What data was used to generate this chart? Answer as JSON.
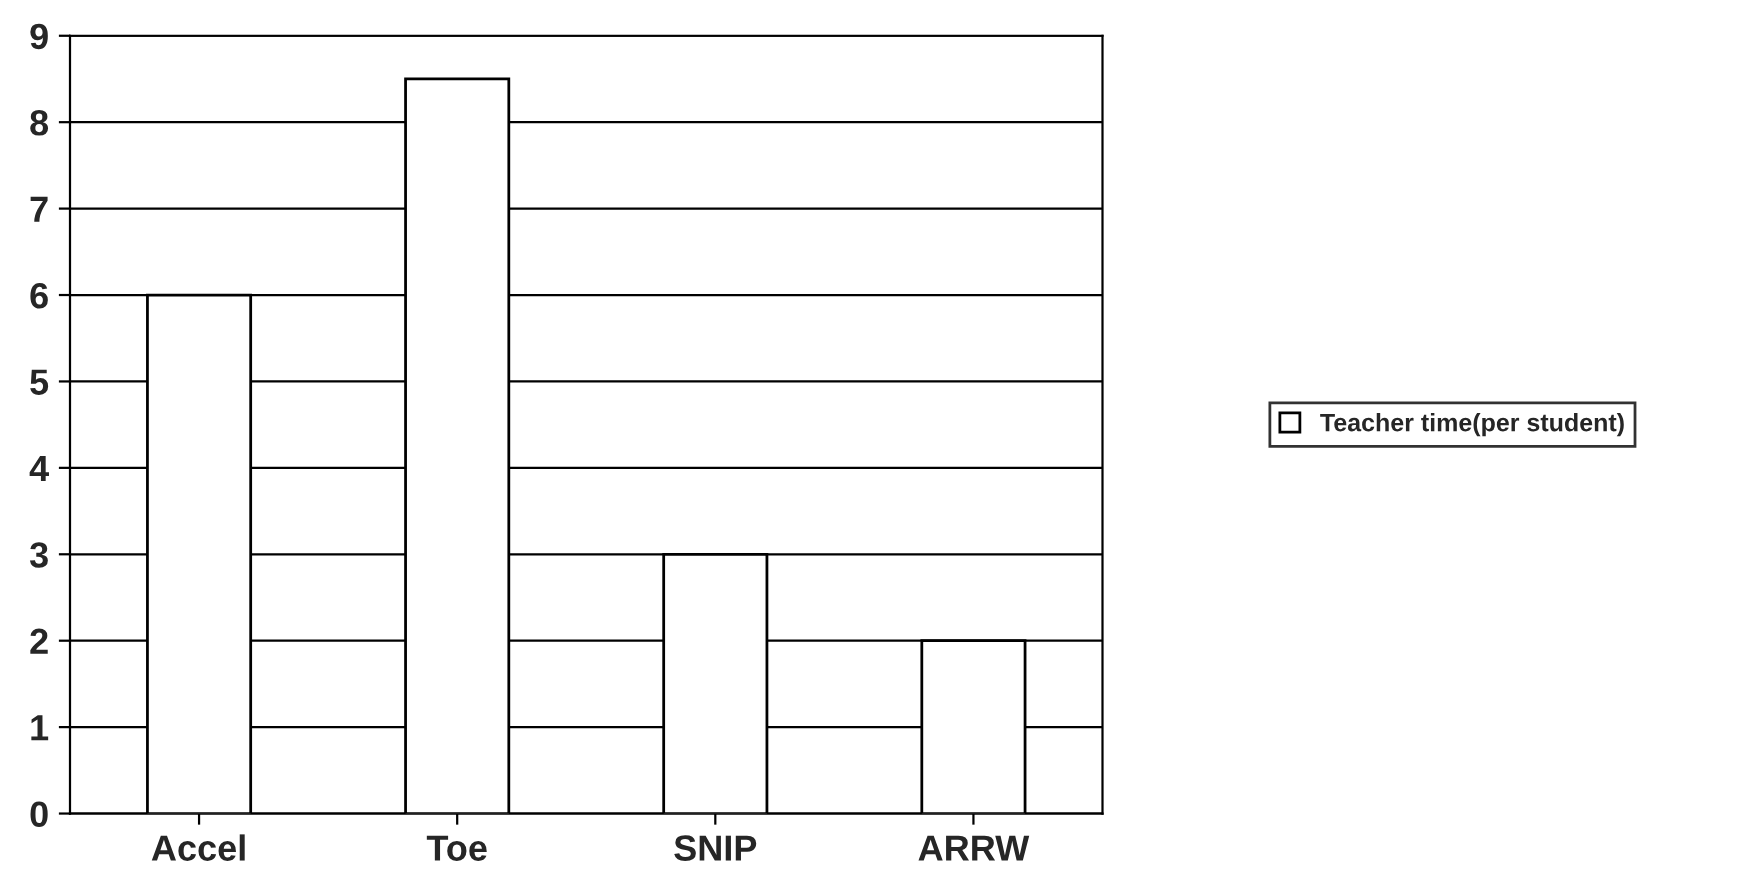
{
  "chart_data": {
    "type": "bar",
    "categories": [
      "Accel",
      "Toe",
      "SNIP",
      "ARRW"
    ],
    "series": [
      {
        "name": "Teacher time(per student)",
        "color": "#ffffff",
        "values": [
          6,
          8.5,
          3,
          2
        ]
      }
    ],
    "ylim": [
      0,
      9
    ],
    "yticks": [
      0,
      1,
      2,
      3,
      4,
      5,
      6,
      7,
      8,
      9
    ],
    "grid": "y",
    "legend": "right"
  }
}
